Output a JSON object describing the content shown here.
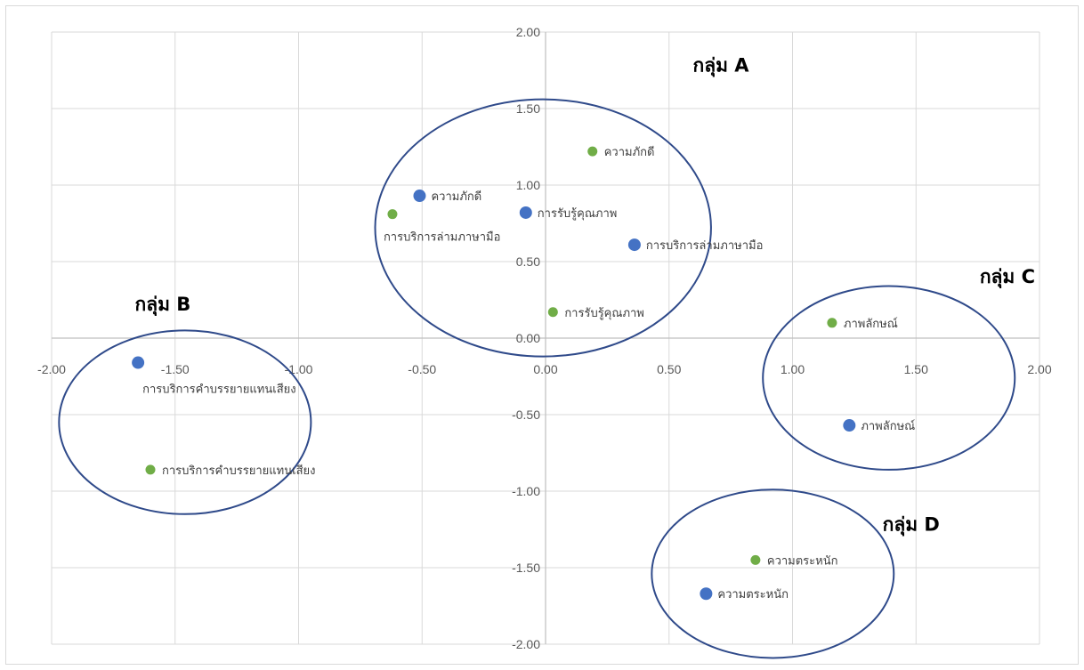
{
  "chart_data": {
    "type": "scatter",
    "xlim": [
      -2,
      2
    ],
    "ylim": [
      -2,
      2
    ],
    "grid": true,
    "x_ticks": [
      "-2.00",
      "-1.50",
      "-1.00",
      "-0.50",
      "0.00",
      "0.50",
      "1.00",
      "1.50",
      "2.00"
    ],
    "y_ticks": [
      "2.00",
      "1.50",
      "1.00",
      "0.50",
      "0.00",
      "-0.50",
      "-1.00",
      "-1.50",
      "-2.00"
    ],
    "colors": {
      "blue": "#4472C4",
      "green": "#70AD47",
      "ellipse": "#2F4A8A",
      "grid": "#D9D9D9"
    },
    "series": [
      {
        "color": "#4472C4",
        "points": [
          {
            "x": -0.51,
            "y": 0.93,
            "label": "ความภักดี"
          },
          {
            "x": -0.08,
            "y": 0.82,
            "label": "การรับรู้คุณภาพ"
          },
          {
            "x": 0.36,
            "y": 0.61,
            "label": "การบริการล่ามภาษามือ"
          },
          {
            "x": -1.65,
            "y": -0.16,
            "label": "การบริการคำบรรยายแทนเสียง"
          },
          {
            "x": 1.23,
            "y": -0.57,
            "label": "ภาพลักษณ์"
          },
          {
            "x": 0.65,
            "y": -1.67,
            "label": "ความตระหนัก"
          }
        ]
      },
      {
        "color": "#70AD47",
        "points": [
          {
            "x": 0.19,
            "y": 1.22,
            "label": "ความภักดี"
          },
          {
            "x": -0.62,
            "y": 0.81,
            "label": "การบริการล่ามภาษามือ"
          },
          {
            "x": 0.03,
            "y": 0.17,
            "label": "การรับรู้คุณภาพ"
          },
          {
            "x": -1.6,
            "y": -0.86,
            "label": "การบริการคำบรรยายแทนเสียง"
          },
          {
            "x": 1.16,
            "y": 0.1,
            "label": "ภาพลักษณ์"
          },
          {
            "x": 0.85,
            "y": -1.45,
            "label": "ความตระหนัก"
          }
        ]
      }
    ],
    "groups": [
      {
        "label": "กลุ่ม A"
      },
      {
        "label": "กลุ่ม B"
      },
      {
        "label": "กลุ่ม C"
      },
      {
        "label": "กลุ่ม D"
      }
    ]
  }
}
